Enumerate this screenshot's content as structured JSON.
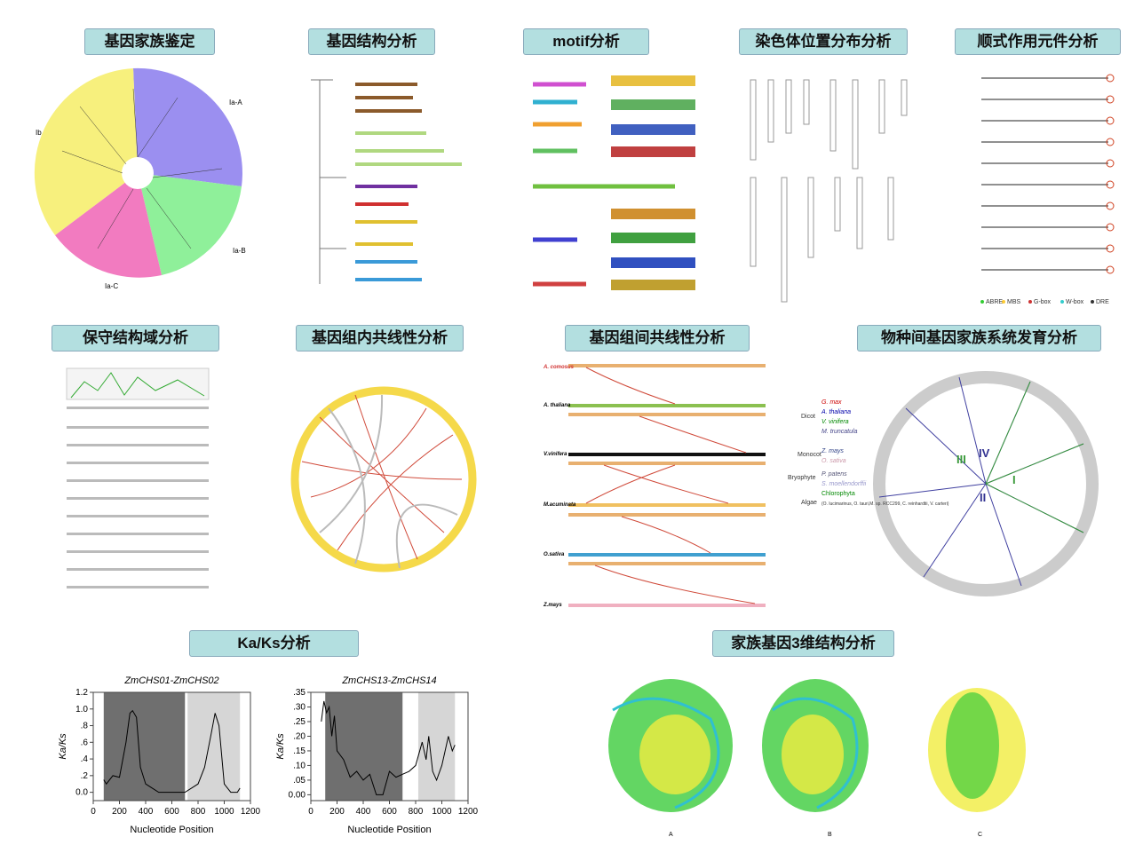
{
  "panels": [
    {
      "title": "基因家族鉴定",
      "labels": [
        "Ia-A",
        "Ia-B",
        "Ia-C",
        "Ib"
      ]
    },
    {
      "title": "基因结构分析"
    },
    {
      "title": "motif分析"
    },
    {
      "title": "染色体位置分布分析"
    },
    {
      "title": "顺式作用元件分析",
      "legend": [
        "ABRE",
        "MBS",
        "G-box",
        "W-box",
        "DRE"
      ]
    },
    {
      "title": "保守结构域分析"
    },
    {
      "title": "基因组内共线性分析"
    },
    {
      "title": "基因组间共线性分析",
      "species": [
        "A. comosus",
        "A. thaliana",
        "V.vinifera",
        "M.acuminata",
        "O.sativa",
        "Z.mays"
      ]
    },
    {
      "title": "物种间基因家族系统发育分析",
      "legend": [
        "Dicot",
        "G. max",
        "A. thaliana",
        "V. vinifera",
        "M. truncatula",
        "Monocot",
        "Z. mays",
        "O. sativa",
        "Bryophyte",
        "P. patens",
        "S. moellendorffii",
        "Algae",
        "Chlorophyta",
        "(O. lucimarinus, O. tauri,M. sp. RCC299, C. reinhardtii, V. carteri)"
      ],
      "clades": [
        "IV",
        "III",
        "II",
        "I"
      ]
    },
    {
      "title": "Ka/Ks分析"
    },
    {
      "title": "家族基因3维结构分析",
      "labels": [
        "A",
        "B",
        "C"
      ]
    }
  ],
  "chart_data": [
    {
      "type": "line",
      "title": "ZmCHS01-ZmCHS02",
      "y_label": "Ka/Ks",
      "x_label": "Nucleotide Position",
      "xlim": [
        0,
        1200
      ],
      "xticks": [
        0,
        200,
        400,
        600,
        800,
        1000,
        1200
      ],
      "ylim": [
        -0.1,
        1.2
      ],
      "yticks": [
        {
          "value": 0,
          "label": "0.0"
        },
        {
          "value": 0.2,
          "label": ".2"
        },
        {
          "value": 0.4,
          "label": ".4"
        },
        {
          "value": 0.6,
          "label": ".6"
        },
        {
          "value": 0.8,
          "label": ".8"
        },
        {
          "value": 1,
          "label": "1.0"
        },
        {
          "value": 1.2,
          "label": "1.2"
        }
      ],
      "regions": [
        {
          "start": 80,
          "end": 700,
          "color": "#6f6f6f"
        },
        {
          "start": 720,
          "end": 1120,
          "color": "#d6d6d6"
        }
      ],
      "x": [
        80,
        100,
        150,
        200,
        250,
        280,
        300,
        330,
        360,
        400,
        450,
        500,
        600,
        700,
        750,
        800,
        850,
        900,
        930,
        960,
        1000,
        1050,
        1100,
        1120
      ],
      "series": [
        {
          "name": "Ka/Ks",
          "color": "#000000",
          "values": [
            0.15,
            0.1,
            0.2,
            0.18,
            0.6,
            0.95,
            0.98,
            0.9,
            0.3,
            0.1,
            0.05,
            0,
            0,
            0,
            0.05,
            0.1,
            0.3,
            0.7,
            0.95,
            0.8,
            0.1,
            0,
            0,
            0.05
          ]
        }
      ]
    },
    {
      "type": "line",
      "title": "ZmCHS13-ZmCHS14",
      "y_label": "Ka/Ks",
      "x_label": "Nucleotide Position",
      "xlim": [
        0,
        1200
      ],
      "xticks": [
        0,
        200,
        400,
        600,
        800,
        1000,
        1200
      ],
      "ylim": [
        -0.02,
        0.35
      ],
      "yticks": [
        {
          "value": 0,
          "label": "0.00"
        },
        {
          "value": 0.05,
          "label": ".05"
        },
        {
          "value": 0.1,
          "label": ".10"
        },
        {
          "value": 0.15,
          "label": ".15"
        },
        {
          "value": 0.2,
          "label": ".20"
        },
        {
          "value": 0.25,
          "label": ".25"
        },
        {
          "value": 0.3,
          "label": ".30"
        },
        {
          "value": 0.35,
          "label": ".35"
        }
      ],
      "regions": [
        {
          "start": 110,
          "end": 700,
          "color": "#6f6f6f"
        },
        {
          "start": 820,
          "end": 1100,
          "color": "#d6d6d6"
        }
      ],
      "x": [
        80,
        100,
        120,
        140,
        160,
        180,
        200,
        250,
        300,
        350,
        400,
        450,
        500,
        550,
        600,
        650,
        700,
        750,
        800,
        850,
        880,
        900,
        930,
        960,
        1000,
        1050,
        1080,
        1100
      ],
      "series": [
        {
          "name": "Ka/Ks",
          "color": "#000000",
          "values": [
            0.25,
            0.32,
            0.28,
            0.3,
            0.2,
            0.27,
            0.15,
            0.12,
            0.06,
            0.08,
            0.05,
            0.07,
            0,
            0,
            0.08,
            0.06,
            0.07,
            0.08,
            0.1,
            0.18,
            0.12,
            0.2,
            0.08,
            0.05,
            0.1,
            0.2,
            0.15,
            0.17
          ]
        }
      ]
    }
  ]
}
